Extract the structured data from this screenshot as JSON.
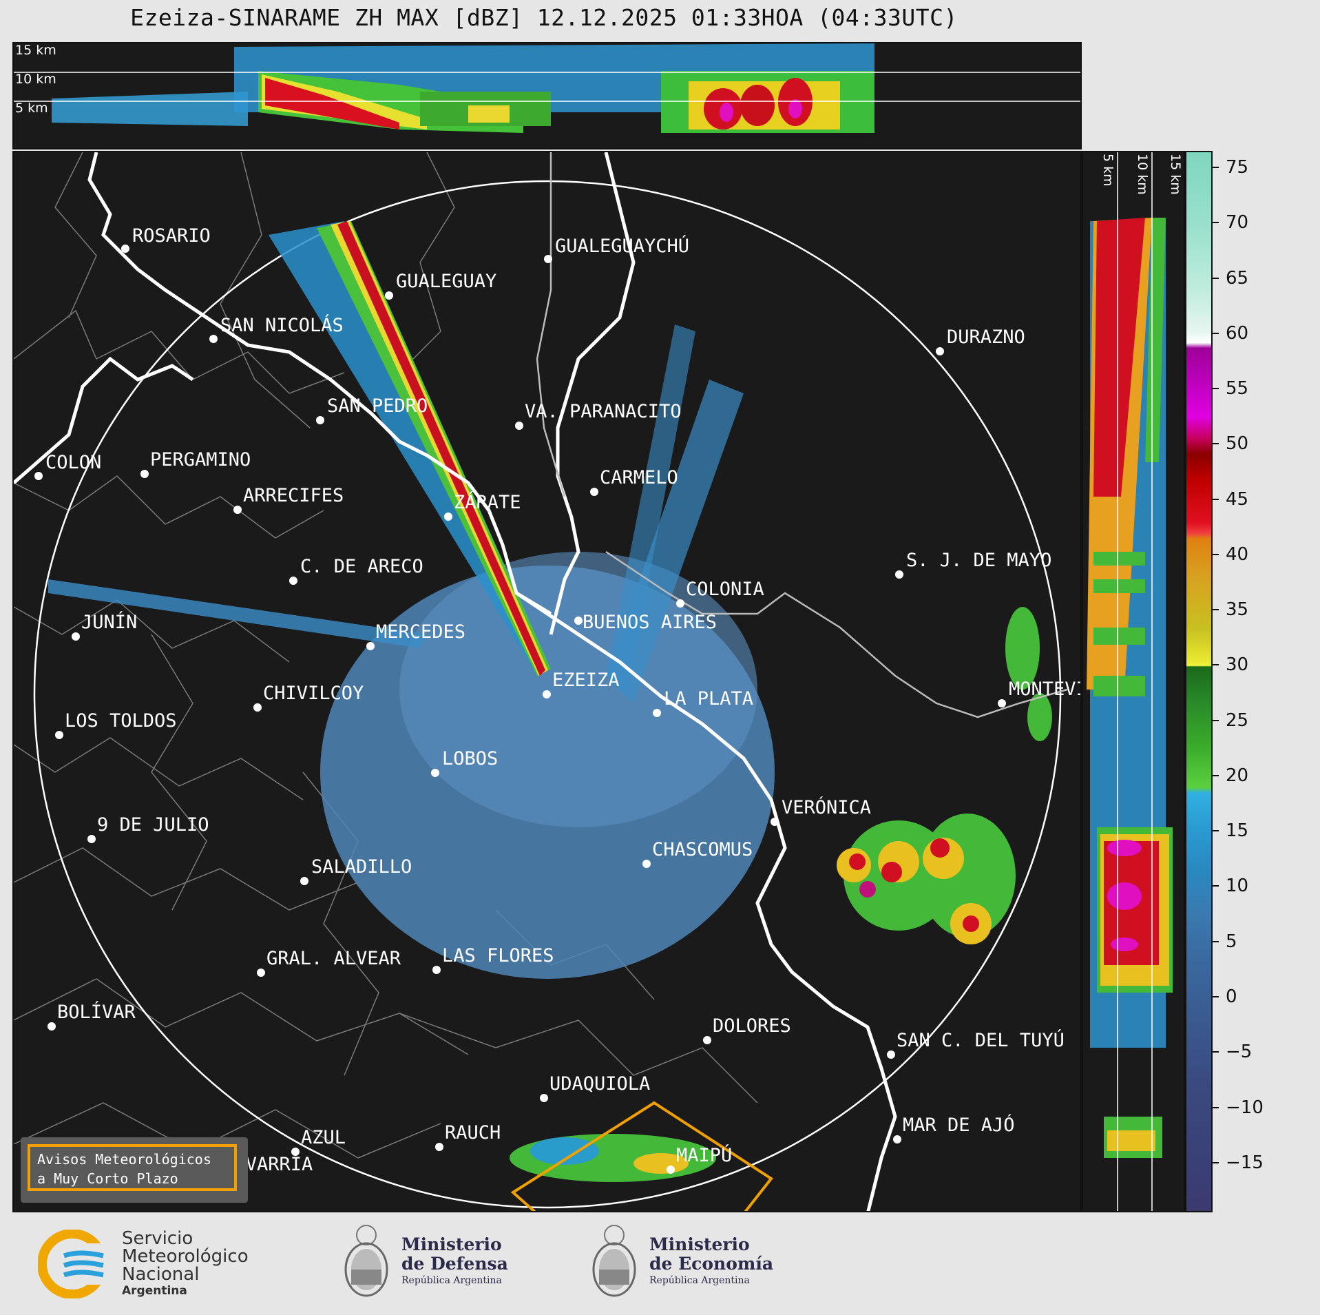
{
  "title": "Ezeiza-SINARAME ZH MAX [dBZ] 12.12.2025 01:33HOA (04:33UTC)",
  "top_altitudes": [
    "15 km",
    "10 km",
    "5 km"
  ],
  "side_altitudes": [
    "5 km",
    "10 km",
    "15 km"
  ],
  "colorbar_ticks": [
    "75",
    "70",
    "65",
    "60",
    "55",
    "50",
    "45",
    "40",
    "35",
    "30",
    "25",
    "20",
    "15",
    "10",
    "5",
    "0",
    "−5",
    "−10",
    "−15"
  ],
  "cities": [
    {
      "name": "ROSARIO"
    },
    {
      "name": "GUALEGUAYCHÚ"
    },
    {
      "name": "GUALEGUAY"
    },
    {
      "name": "SAN NICOLÁS"
    },
    {
      "name": "DURAZNO"
    },
    {
      "name": "SAN PEDRO"
    },
    {
      "name": "VA. PARANACITO"
    },
    {
      "name": "COLON"
    },
    {
      "name": "PERGAMINO"
    },
    {
      "name": "CARMELO"
    },
    {
      "name": "ARRECIFES"
    },
    {
      "name": "ZÁRATE"
    },
    {
      "name": "S. J. DE MAYO"
    },
    {
      "name": "C. DE ARECO"
    },
    {
      "name": "COLONIA"
    },
    {
      "name": "JUNÍN"
    },
    {
      "name": "BUENOS AIRES"
    },
    {
      "name": "MERCEDES"
    },
    {
      "name": "EZEIZA"
    },
    {
      "name": "MONTEVIDEO"
    },
    {
      "name": "CHIVILCOY"
    },
    {
      "name": "LA PLATA"
    },
    {
      "name": "LOS TOLDOS"
    },
    {
      "name": "LOBOS"
    },
    {
      "name": "VERÓNICA"
    },
    {
      "name": "9 DE JULIO"
    },
    {
      "name": "CHASCOMUS"
    },
    {
      "name": "SALADILLO"
    },
    {
      "name": "GRAL. ALVEAR"
    },
    {
      "name": "LAS FLORES"
    },
    {
      "name": "BOLÍVAR"
    },
    {
      "name": "DOLORES"
    },
    {
      "name": "SAN C. DEL TUYÚ"
    },
    {
      "name": "UDAQUIOLA"
    },
    {
      "name": "MAR DE AJÓ"
    },
    {
      "name": "AZUL"
    },
    {
      "name": "RAUCH"
    },
    {
      "name": "MAIPÚ"
    },
    {
      "name": "OLAVARRÍA"
    }
  ],
  "alert": {
    "line1": "Avisos Meteorológicos",
    "line2": "a Muy Corto Plazo"
  },
  "logos": {
    "smn": [
      "Servicio",
      "Meteorológico",
      "Nacional",
      "Argentina"
    ],
    "defensa": [
      "Ministerio",
      "de Defensa",
      "República Argentina"
    ],
    "economia": [
      "Ministerio",
      "de Economía",
      "República Argentina"
    ]
  },
  "colors": {
    "accent_orange": "#f0a000",
    "smn_blue": "#2aa0dc",
    "background": "#1a1a1a"
  }
}
